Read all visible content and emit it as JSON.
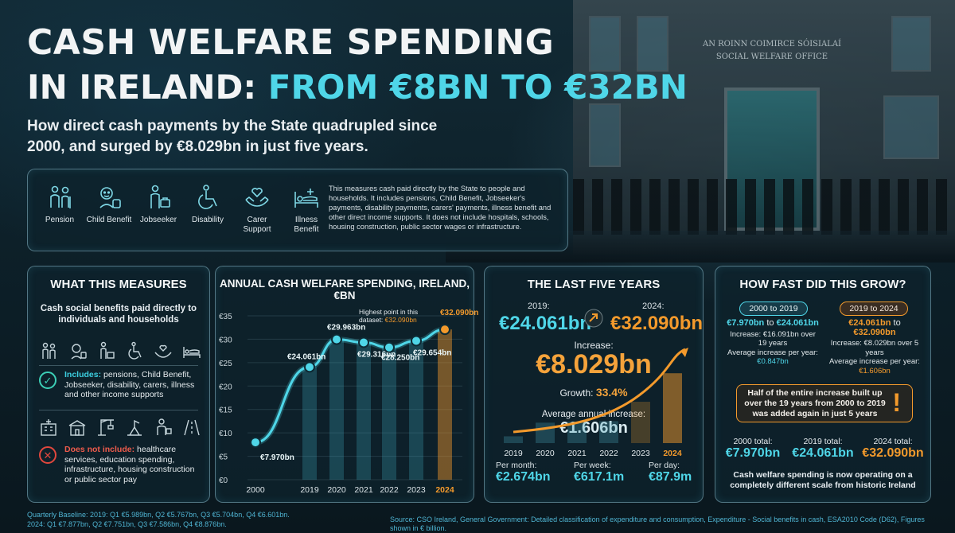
{
  "header": {
    "title_line1": "CASH WELFARE SPENDING",
    "title_line2_prefix": "IN IRELAND:",
    "title_line2_highlight": "FROM €8BN TO €32BN",
    "subtitle": "How direct cash payments by the State quadrupled since 2000, and surged by €8.029bn in just five years."
  },
  "scene": {
    "sign": "AN ROINN COIMIRCE SÓISIALAÍ SOCIAL WELFARE OFFICE"
  },
  "categories_bar": {
    "items": [
      {
        "label": "Pension",
        "icon": "pension-icon"
      },
      {
        "label": "Child Benefit",
        "icon": "child-benefit-icon"
      },
      {
        "label": "Jobseeker",
        "icon": "jobseeker-icon"
      },
      {
        "label": "Disability",
        "icon": "disability-icon"
      },
      {
        "label": "Carer Support",
        "icon": "carer-support-icon"
      },
      {
        "label": "Illness Benefit",
        "icon": "illness-benefit-icon"
      }
    ],
    "description": "This measures cash paid directly by the State to people and households. It includes pensions, Child Benefit, Jobseeker's payments, disability payments, carers' payments, illness benefit and other direct income supports. It does not include hospitals, schools, housing construction, public sector wages or infrastructure."
  },
  "what_measures": {
    "title": "WHAT THIS MEASURES",
    "lead": "Cash social benefits paid directly to individuals and households",
    "includes_label": "Includes:",
    "includes_text": "pensions, Child Benefit, Jobseeker, disability, carers, illness and other income supports",
    "excludes_label": "Does not include:",
    "excludes_text": "healthcare services, education spending, infrastructure, housing construction or public sector pay"
  },
  "chart_data": {
    "type": "line",
    "title": "ANNUAL CASH WELFARE SPENDING, IRELAND, €BN",
    "x": [
      2000,
      2019,
      2020,
      2021,
      2022,
      2023,
      2024
    ],
    "values": [
      7.97,
      24.061,
      29.963,
      29.316,
      28.25,
      29.654,
      32.09
    ],
    "data_labels": [
      "€7.970bn",
      "€24.061bn",
      "€29.963bn",
      "€29.316bn",
      "€28.250bn",
      "€29.654bn",
      "€32.090bn"
    ],
    "ylim": [
      0,
      35
    ],
    "yticks": [
      0,
      5,
      10,
      15,
      20,
      25,
      30,
      35
    ],
    "ytick_labels": [
      "€0",
      "€5",
      "€10",
      "€15",
      "€20",
      "€25",
      "€30",
      "€35"
    ],
    "annotation": "Highest point in this dataset: €32.090bn",
    "highlight_color": "#f39a2c",
    "line_color": "#4fd6e8"
  },
  "last_five": {
    "title": "THE LAST FIVE YEARS",
    "start_year_label": "2019:",
    "start_value": "€24.061bn",
    "end_year_label": "2024:",
    "end_value": "€32.090bn",
    "increase_label": "Increase:",
    "increase_value": "€8.029bn",
    "growth_label": "Growth:",
    "growth_value": "33.4%",
    "avg_label": "Average annual increase:",
    "avg_value": "€1.606bn",
    "mini_years": [
      "2019",
      "2020",
      "2021",
      "2022",
      "2023",
      "2024"
    ],
    "per_month_label": "Per month:",
    "per_month": "€2.674bn",
    "per_week_label": "Per week:",
    "per_week": "€617.1m",
    "per_day_label": "Per day:",
    "per_day": "€87.9m"
  },
  "how_fast": {
    "title": "HOW FAST DID THIS GROW?",
    "left": {
      "period": "2000 to 2019",
      "range_from": "€7.970bn",
      "range_to": "€24.061bn",
      "increase_text": "Increase: €16.091bn over 19 years",
      "avg_label": "Average increase per year:",
      "avg_value": "€0.847bn"
    },
    "right": {
      "period": "2019 to 2024",
      "range_from": "€24.061bn",
      "range_to": "€32.090bn",
      "increase_text": "Increase: €8.029bn over 5 years",
      "avg_label": "Average increase per year:",
      "avg_value": "€1.606bn"
    },
    "callout": "Half of the entire increase built up over the 19 years from 2000 to 2019 was added again in just 5 years",
    "totals": [
      {
        "label": "2000 total:",
        "value": "€7.970bn"
      },
      {
        "label": "2019 total:",
        "value": "€24.061bn"
      },
      {
        "label": "2024 total:",
        "value": "€32.090bn"
      }
    ],
    "closing": "Cash welfare spending is now operating on a completely different scale from historic Ireland"
  },
  "footer": {
    "quarterly_1": "Quarterly Baseline: 2019: Q1 €5.989bn, Q2 €5.767bn, Q3 €5.704bn, Q4 €6.601bn.",
    "quarterly_2": "2024: Q1 €7.877bn, Q2 €7.751bn, Q3 €7.586bn, Q4 €8.876bn.",
    "source": "Source: CSO Ireland, General Government: Detailed classification of expenditure and consumption, Expenditure - Social benefits in cash, ESA2010 Code (D62), Figures shown in € billion."
  }
}
